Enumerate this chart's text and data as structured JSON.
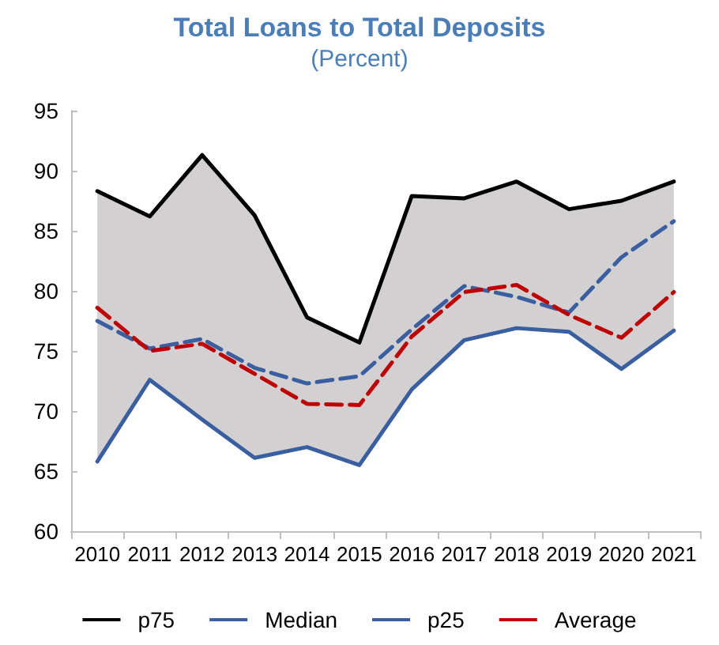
{
  "chart_data": {
    "type": "line",
    "title": "Total Loans to Total Deposits",
    "subtitle": "(Percent)",
    "categories": [
      "2010",
      "2011",
      "2012",
      "2013",
      "2014",
      "2015",
      "2016",
      "2017",
      "2018",
      "2019",
      "2020",
      "2021"
    ],
    "ylim": [
      60,
      95
    ],
    "yticks": [
      60,
      65,
      70,
      75,
      80,
      85,
      90,
      95
    ],
    "grid": false,
    "legend": "bottom",
    "marker": "none",
    "series": [
      {
        "name": "p75",
        "color": "#000000",
        "line_style": "solid",
        "values": [
          88.3,
          86.2,
          91.3,
          86.3,
          77.8,
          75.7,
          87.9,
          87.7,
          89.1,
          86.8,
          87.5,
          89.1
        ]
      },
      {
        "name": "Median",
        "color": "#3a5fa0",
        "line_style": "dashed",
        "values": [
          77.5,
          75.2,
          76.0,
          73.6,
          72.3,
          72.9,
          76.8,
          80.4,
          79.5,
          78.2,
          82.8,
          85.8
        ],
        "lower": [
          65.8,
          72.6,
          69.3,
          66.1,
          67.0,
          65.5,
          71.8,
          75.9,
          76.9,
          76.6,
          73.5,
          76.7
        ],
        "upper": [
          88.3,
          86.2,
          91.3,
          86.3,
          77.8,
          75.7,
          87.9,
          87.7,
          89.1,
          86.8,
          87.5,
          89.1
        ]
      },
      {
        "name": "p25",
        "color": "#3a5fa0",
        "line_style": "solid",
        "values": [
          65.8,
          72.6,
          69.3,
          66.1,
          67.0,
          65.5,
          71.8,
          75.9,
          76.9,
          76.6,
          73.5,
          76.7
        ]
      },
      {
        "name": "Average",
        "color": "#c00000",
        "line_style": "dashed",
        "values": [
          78.6,
          75.0,
          75.6,
          73.1,
          70.6,
          70.5,
          76.2,
          79.9,
          80.5,
          78.0,
          76.1,
          79.9
        ]
      }
    ]
  }
}
